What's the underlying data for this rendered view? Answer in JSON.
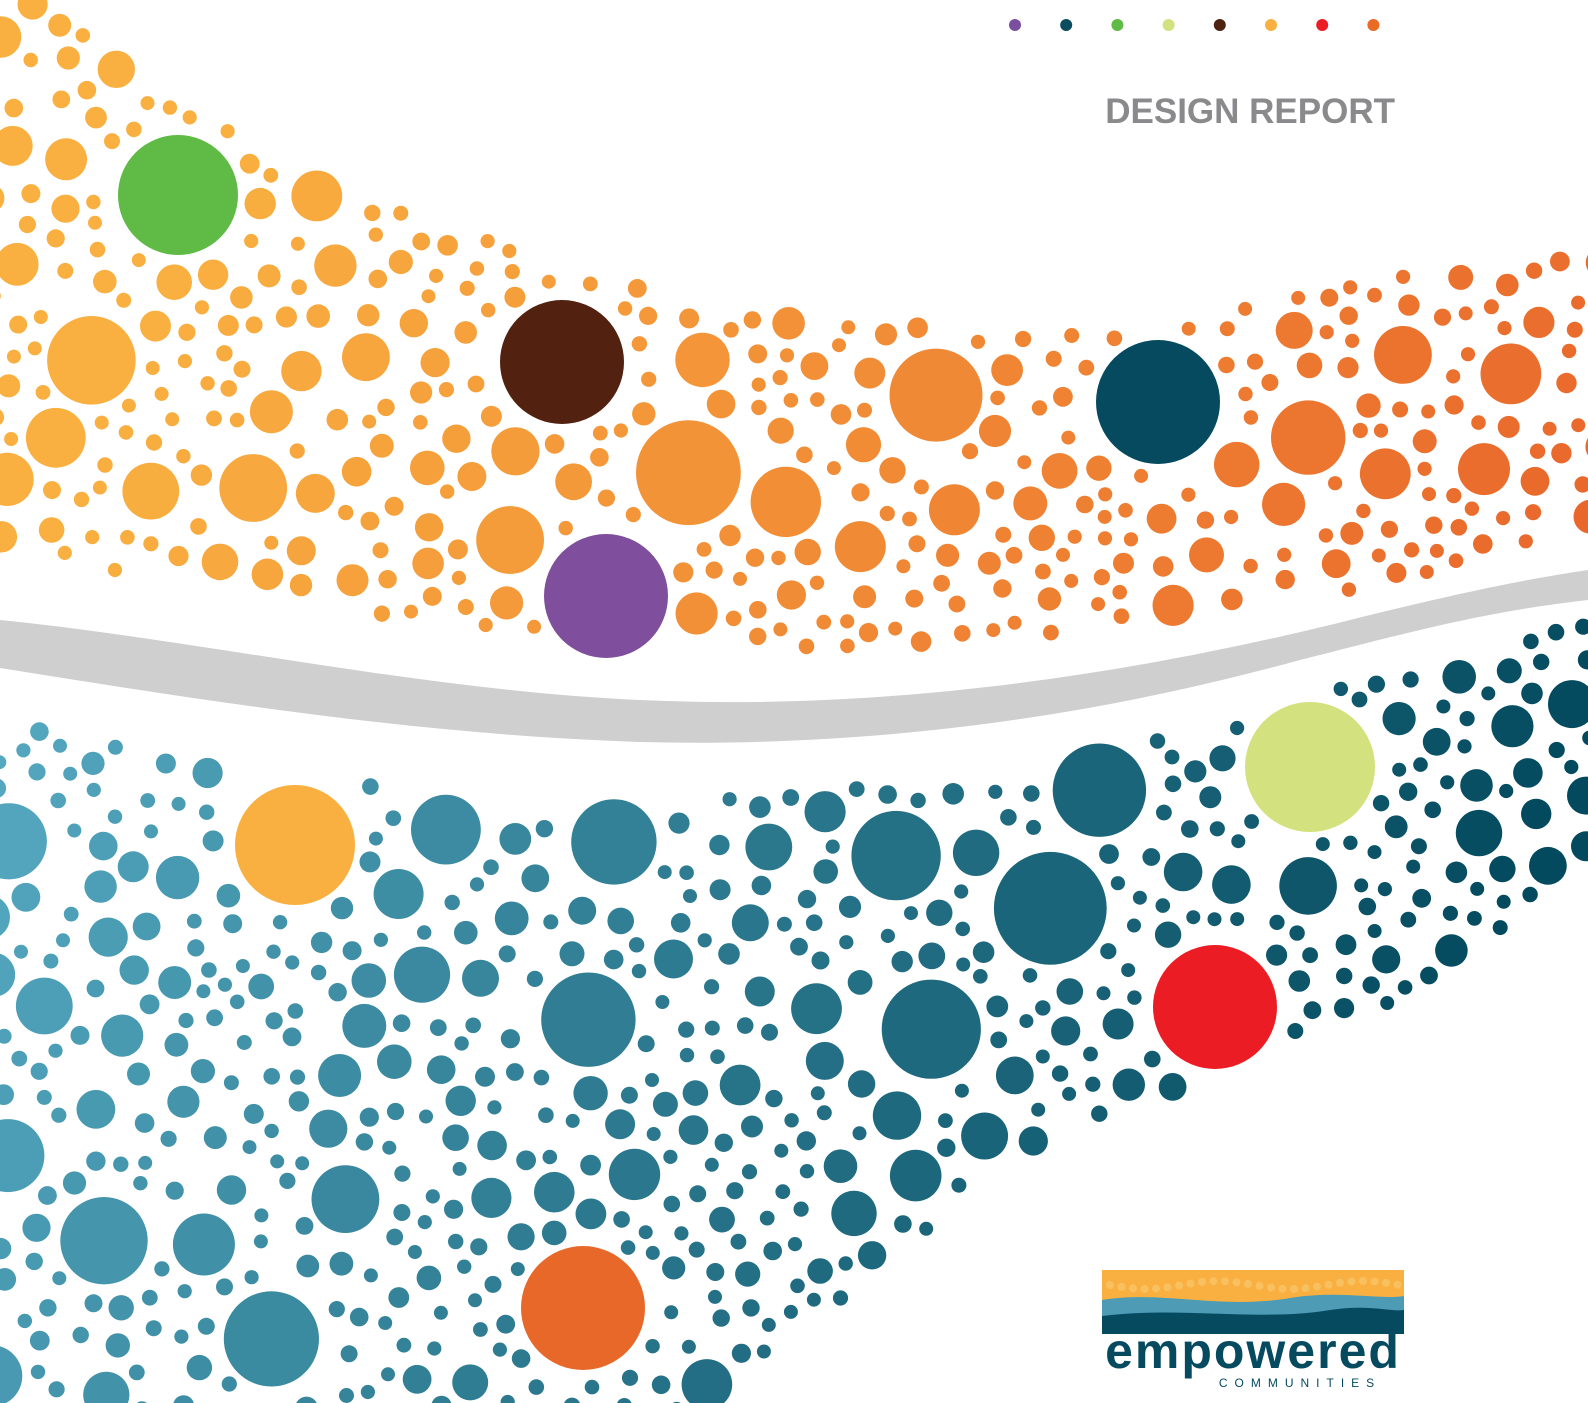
{
  "header": {
    "title": "DESIGN REPORT"
  },
  "logo": {
    "name": "empowered",
    "tagline": "COMMUNITIES"
  }
}
